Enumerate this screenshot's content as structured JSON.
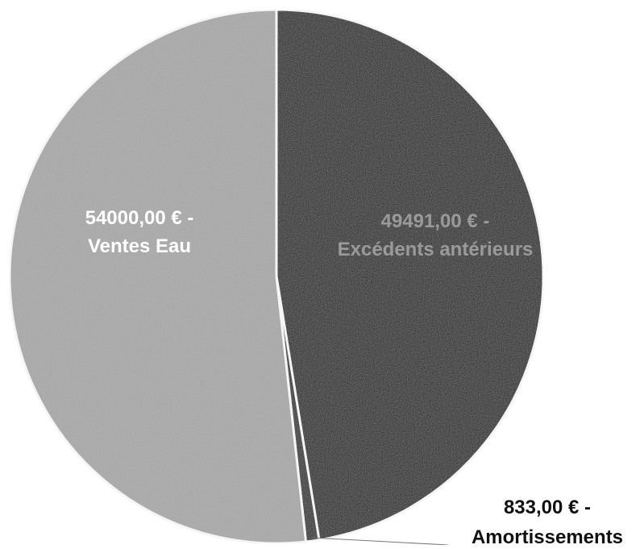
{
  "chart_data": {
    "type": "pie",
    "slices": [
      {
        "value": 49491.0,
        "label_line1": "49491,00 € -",
        "label_line2": "Excédents antérieurs",
        "color": "#0a0a0a",
        "label_color": "#9a9a9a"
      },
      {
        "value": 833.0,
        "label_line1": "833,00 € -",
        "label_line2": "Amortissements",
        "color": "#1a1a1a",
        "label_color": "#111111"
      },
      {
        "value": 54000.0,
        "label_line1": "54000,00 € -",
        "label_line2": "Ventes Eau",
        "color": "#a8a8a8",
        "label_color": "#ffffff"
      }
    ]
  }
}
